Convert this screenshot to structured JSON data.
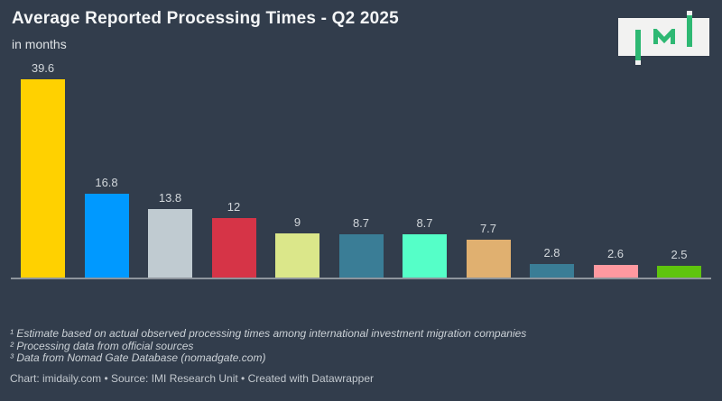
{
  "header": {
    "title": "Average Reported Processing Times - Q2 2025",
    "subtitle": "in months"
  },
  "logo": {
    "name": "IMI",
    "green": "#2EB873",
    "background": "#F2F2F1"
  },
  "chart_data": {
    "type": "bar",
    "title": "Average Reported Processing Times - Q2 2025",
    "subtitle": "in months",
    "unit": "months",
    "categories": [],
    "values": [
      39.6,
      16.8,
      13.8,
      12,
      9,
      8.7,
      8.7,
      7.7,
      2.8,
      2.6,
      2.5
    ],
    "value_labels": [
      "39.6",
      "16.8",
      "13.8",
      "12",
      "9",
      "8.7",
      "8.7",
      "7.7",
      "2.8",
      "2.6",
      "2.5"
    ],
    "bar_colors": [
      "#FFD100",
      "#0099FF",
      "#C0CBD1",
      "#D63447",
      "#DBE78A",
      "#3A7D96",
      "#55FFC8",
      "#E0B070",
      "#3A7D96",
      "#FF99A0",
      "#5FC40D"
    ],
    "ylim": [
      0,
      40
    ],
    "grid": false,
    "legend": false,
    "x_axis_labels_visible": false,
    "value_labels_shown": true
  },
  "footnotes": [
    "¹ Estimate based on actual observed processing times among international investment migration companies",
    "² Processing data from official sources",
    "³ Data from Nomad Gate Database (nomadgate.com)"
  ],
  "footer": {
    "text": "Chart: imidaily.com • Source: IMI Research Unit • Created with Datawrapper"
  },
  "colors": {
    "background": "#323D4C",
    "title": "#F4F6F7",
    "subtitle": "#DEE2E5",
    "value_label": "#D2D7DB",
    "axis_line": "#8E959D",
    "footnote": "#CBD1D6",
    "footer": "#C2C8CE"
  }
}
